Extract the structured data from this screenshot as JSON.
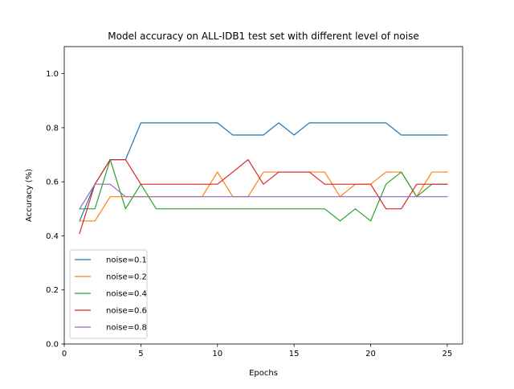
{
  "chart_data": {
    "type": "line",
    "title": "Model accuracy on ALL-IDB1 test set with different level of noise",
    "xlabel": "Epochs",
    "ylabel": "Accuracy (%)",
    "xlim": [
      0,
      26
    ],
    "ylim": [
      0.0,
      1.1
    ],
    "xticks": [
      0,
      5,
      10,
      15,
      20,
      25
    ],
    "xtick_labels": [
      "0",
      "5",
      "10",
      "15",
      "20",
      "25"
    ],
    "yticks": [
      0.0,
      0.2,
      0.4,
      0.6,
      0.8,
      1.0
    ],
    "ytick_labels": [
      "0.0",
      "0.2",
      "0.4",
      "0.6",
      "0.8",
      "1.0"
    ],
    "grid": false,
    "legend_position": "lower-left",
    "x": [
      1,
      2,
      3,
      4,
      5,
      6,
      7,
      8,
      9,
      10,
      11,
      12,
      13,
      14,
      15,
      16,
      17,
      18,
      19,
      20,
      21,
      22,
      23,
      24,
      25
    ],
    "series": [
      {
        "name": "noise=0.1",
        "color": "#1f77b4",
        "values": [
          0.455,
          0.591,
          0.682,
          0.682,
          0.818,
          0.818,
          0.818,
          0.818,
          0.818,
          0.818,
          0.773,
          0.773,
          0.773,
          0.818,
          0.773,
          0.818,
          0.818,
          0.818,
          0.818,
          0.818,
          0.818,
          0.773,
          0.773,
          0.773,
          0.773
        ]
      },
      {
        "name": "noise=0.2",
        "color": "#ff7f0e",
        "values": [
          0.455,
          0.455,
          0.545,
          0.545,
          0.545,
          0.545,
          0.545,
          0.545,
          0.545,
          0.636,
          0.545,
          0.545,
          0.636,
          0.636,
          0.636,
          0.636,
          0.636,
          0.545,
          0.591,
          0.591,
          0.636,
          0.636,
          0.545,
          0.636,
          0.636
        ]
      },
      {
        "name": "noise=0.4",
        "color": "#2ca02c",
        "values": [
          0.5,
          0.5,
          0.682,
          0.5,
          0.591,
          0.5,
          0.5,
          0.5,
          0.5,
          0.5,
          0.5,
          0.5,
          0.5,
          0.5,
          0.5,
          0.5,
          0.5,
          0.455,
          0.5,
          0.455,
          0.591,
          0.636,
          0.545,
          0.591,
          0.591
        ]
      },
      {
        "name": "noise=0.6",
        "color": "#d62728",
        "values": [
          0.409,
          0.591,
          0.682,
          0.682,
          0.591,
          0.591,
          0.591,
          0.591,
          0.591,
          0.591,
          0.636,
          0.682,
          0.591,
          0.636,
          0.636,
          0.636,
          0.591,
          0.591,
          0.591,
          0.591,
          0.5,
          0.5,
          0.591,
          0.591,
          0.591
        ]
      },
      {
        "name": "noise=0.8",
        "color": "#9467bd",
        "values": [
          0.5,
          0.591,
          0.591,
          0.545,
          0.545,
          0.545,
          0.545,
          0.545,
          0.545,
          0.545,
          0.545,
          0.545,
          0.545,
          0.545,
          0.545,
          0.545,
          0.545,
          0.545,
          0.545,
          0.545,
          0.545,
          0.545,
          0.545,
          0.545,
          0.545
        ]
      }
    ]
  }
}
